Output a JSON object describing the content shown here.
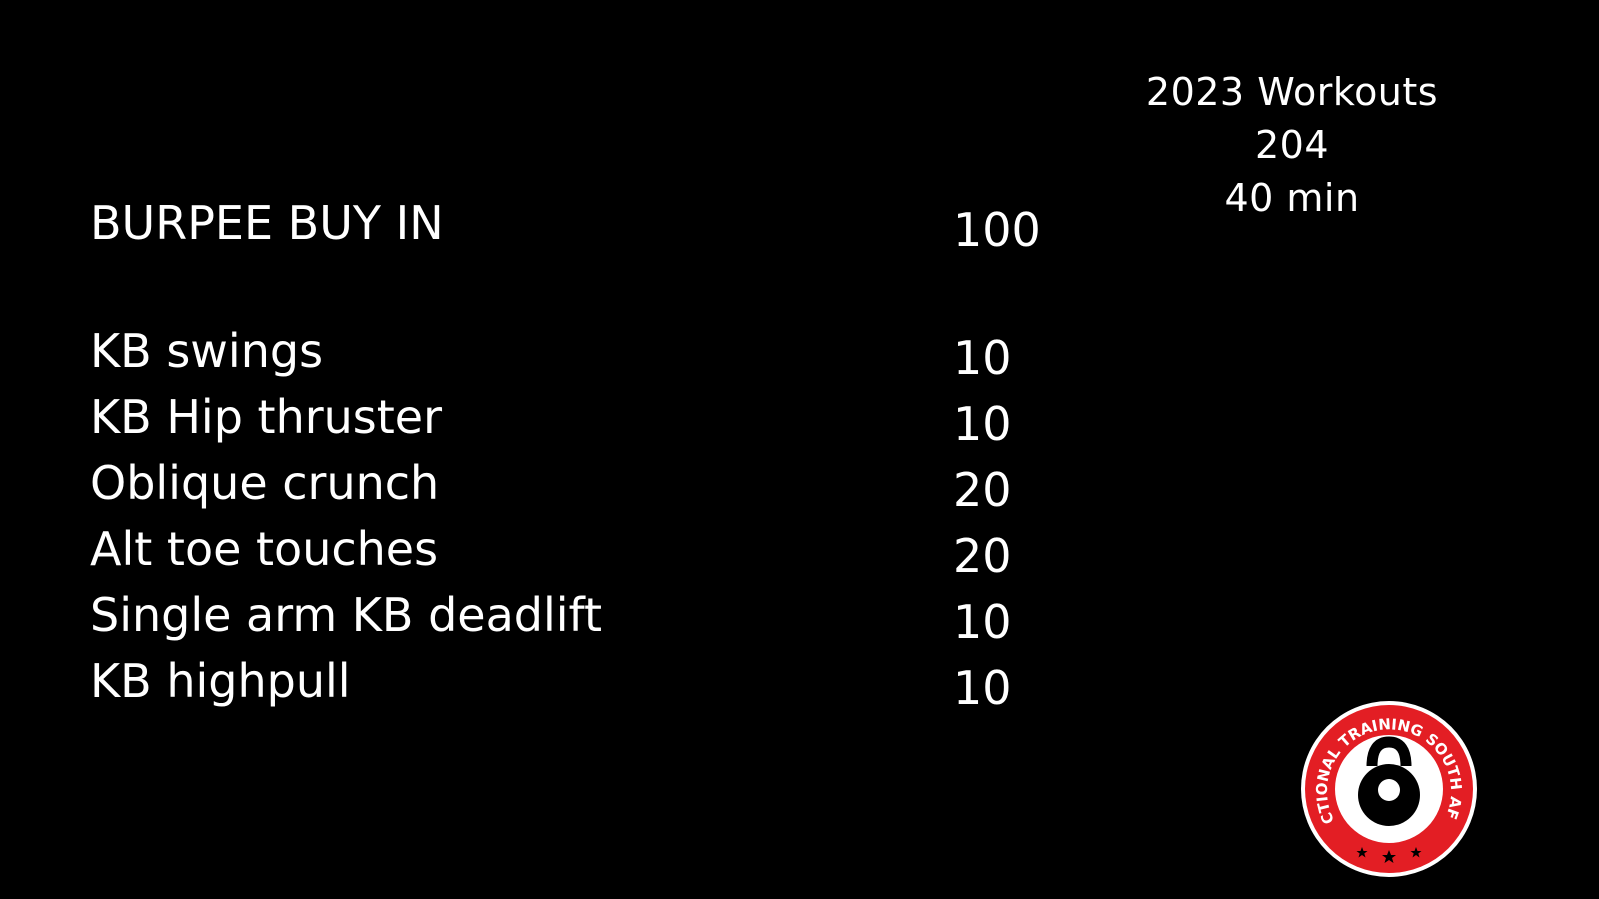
{
  "header": {
    "title": "2023 Workouts",
    "number": "204",
    "duration": "40 min"
  },
  "buy_in": {
    "name": "BURPEE BUY IN",
    "reps": "100"
  },
  "exercises": [
    {
      "name": "KB swings",
      "reps": "10"
    },
    {
      "name": "KB Hip thruster",
      "reps": "10"
    },
    {
      "name": "Oblique crunch",
      "reps": "20"
    },
    {
      "name": "Alt toe touches",
      "reps": "20"
    },
    {
      "name": "Single arm KB deadlift",
      "reps": "10"
    },
    {
      "name": "KB highpull",
      "reps": "10"
    }
  ],
  "logo": {
    "text": "FUNCTIONAL TRAINING SOUTH AFRICA",
    "icon": "kettlebell-icon",
    "colors": {
      "ring": "#e31e24",
      "inner": "#ffffff",
      "kettlebell": "#000000"
    }
  }
}
